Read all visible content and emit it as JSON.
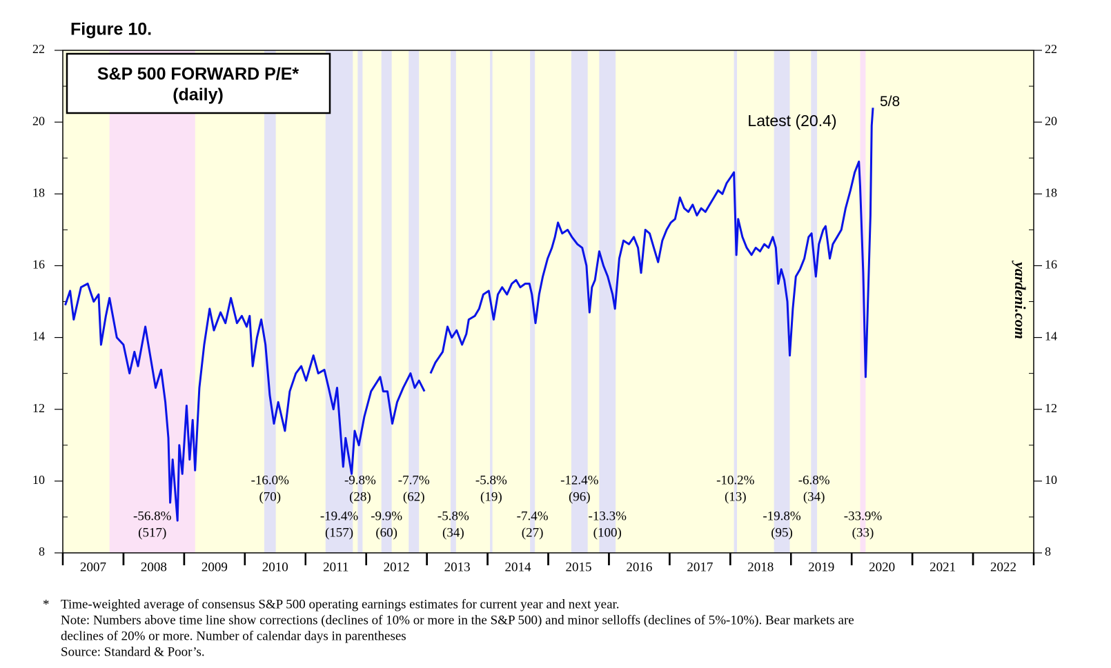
{
  "chart_data": {
    "type": "line",
    "figure_label": "Figure 10.",
    "title": "S&P 500 FORWARD P/E*",
    "subtitle": "(daily)",
    "source_mark": "yardeni.com",
    "latest_label": "Latest (20.4)",
    "latest_date": "5/8",
    "color": "#0a14e6",
    "background": "#ffffe0",
    "bear_color": "#fbe2f6",
    "correction_color": "#e2e2f6",
    "xlim": [
      2007,
      2023
    ],
    "xticks": [
      {
        "value": 2007.5,
        "label": "2007"
      },
      {
        "value": 2008.5,
        "label": "2008"
      },
      {
        "value": 2009.5,
        "label": "2009"
      },
      {
        "value": 2010.5,
        "label": "2010"
      },
      {
        "value": 2011.5,
        "label": "2011"
      },
      {
        "value": 2012.5,
        "label": "2012"
      },
      {
        "value": 2013.5,
        "label": "2013"
      },
      {
        "value": 2014.5,
        "label": "2014"
      },
      {
        "value": 2015.5,
        "label": "2015"
      },
      {
        "value": 2016.5,
        "label": "2016"
      },
      {
        "value": 2017.5,
        "label": "2017"
      },
      {
        "value": 2018.5,
        "label": "2018"
      },
      {
        "value": 2019.5,
        "label": "2019"
      },
      {
        "value": 2020.5,
        "label": "2020"
      },
      {
        "value": 2021.5,
        "label": "2021"
      },
      {
        "value": 2022.5,
        "label": "2022"
      }
    ],
    "ylim": [
      8,
      22
    ],
    "yticks": [
      8,
      10,
      12,
      14,
      16,
      18,
      20,
      22
    ],
    "x": [
      2007.04,
      2007.12,
      2007.18,
      2007.3,
      2007.41,
      2007.51,
      2007.59,
      2007.63,
      2007.71,
      2007.77,
      2007.89,
      2008.0,
      2008.1,
      2008.18,
      2008.24,
      2008.36,
      2008.45,
      2008.53,
      2008.62,
      2008.69,
      2008.74,
      2008.77,
      2008.81,
      2008.89,
      2008.92,
      2008.97,
      2009.04,
      2009.09,
      2009.14,
      2009.18,
      2009.25,
      2009.33,
      2009.42,
      2009.49,
      2009.6,
      2009.68,
      2009.77,
      2009.87,
      2009.95,
      2010.03,
      2010.08,
      2010.13,
      2010.2,
      2010.27,
      2010.34,
      2010.41,
      2010.48,
      2010.55,
      2010.66,
      2010.74,
      2010.84,
      2010.93,
      2011.01,
      2011.13,
      2011.21,
      2011.31,
      2011.38,
      2011.46,
      2011.52,
      2011.62,
      2011.66,
      2011.76,
      2011.81,
      2011.88,
      2011.97,
      2012.08,
      2012.23,
      2012.28,
      2012.35,
      2012.43,
      2012.51,
      2012.61,
      2012.73,
      2012.8,
      2012.87,
      2012.96,
      2013.01,
      2013.06,
      2013.14,
      2013.26,
      2013.34,
      2013.41,
      2013.49,
      2013.58,
      2013.65,
      2013.69,
      2013.79,
      2013.86,
      2013.93,
      2014.02,
      2014.1,
      2014.17,
      2014.24,
      2014.32,
      2014.4,
      2014.47,
      2014.54,
      2014.62,
      2014.69,
      2014.73,
      2014.79,
      2014.85,
      2014.91,
      2014.99,
      2015.06,
      2015.11,
      2015.16,
      2015.23,
      2015.32,
      2015.39,
      2015.48,
      2015.56,
      2015.63,
      2015.68,
      2015.72,
      2015.77,
      2015.84,
      2015.91,
      2015.98,
      2016.06,
      2016.1,
      2016.17,
      2016.24,
      2016.33,
      2016.41,
      2016.48,
      2016.53,
      2016.6,
      2016.67,
      2016.74,
      2016.81,
      2016.88,
      2016.95,
      2017.02,
      2017.09,
      2017.17,
      2017.24,
      2017.31,
      2017.38,
      2017.45,
      2017.52,
      2017.59,
      2017.66,
      2017.73,
      2017.8,
      2017.87,
      2017.94,
      2018.02,
      2018.06,
      2018.1,
      2018.13,
      2018.2,
      2018.27,
      2018.35,
      2018.42,
      2018.49,
      2018.56,
      2018.63,
      2018.7,
      2018.75,
      2018.79,
      2018.84,
      2018.89,
      2018.94,
      2018.98,
      2019.03,
      2019.08,
      2019.15,
      2019.22,
      2019.29,
      2019.34,
      2019.41,
      2019.46,
      2019.53,
      2019.57,
      2019.64,
      2019.69,
      2019.76,
      2019.83,
      2019.9,
      2019.98,
      2020.05,
      2020.12,
      2020.14,
      2020.19,
      2020.23,
      2020.26,
      2020.31,
      2020.33,
      2020.35
    ],
    "values": [
      14.9,
      15.3,
      14.5,
      15.4,
      15.5,
      15.0,
      15.2,
      13.8,
      14.6,
      15.1,
      14.0,
      13.8,
      13.0,
      13.6,
      13.2,
      14.3,
      13.4,
      12.6,
      13.1,
      12.2,
      11.2,
      9.4,
      10.6,
      8.9,
      11.0,
      10.2,
      12.1,
      10.6,
      11.7,
      10.3,
      12.6,
      13.8,
      14.8,
      14.2,
      14.7,
      14.4,
      15.1,
      14.4,
      14.6,
      14.3,
      14.6,
      13.2,
      14.0,
      14.5,
      13.8,
      12.4,
      11.6,
      12.2,
      11.4,
      12.5,
      13.0,
      13.2,
      12.8,
      13.5,
      13.0,
      13.1,
      12.6,
      12.0,
      12.6,
      10.4,
      11.2,
      10.2,
      11.4,
      11.0,
      11.8,
      12.5,
      12.9,
      12.5,
      12.5,
      11.6,
      12.2,
      12.6,
      13.0,
      12.6,
      12.8,
      12.5,
      null,
      13.0,
      13.3,
      13.6,
      14.3,
      14.0,
      14.2,
      13.8,
      14.1,
      14.5,
      14.6,
      14.8,
      15.2,
      15.3,
      14.5,
      15.2,
      15.4,
      15.2,
      15.5,
      15.6,
      15.4,
      15.5,
      15.5,
      15.2,
      14.4,
      15.2,
      15.7,
      16.2,
      16.5,
      16.8,
      17.2,
      16.9,
      17.0,
      16.8,
      16.6,
      16.5,
      16.0,
      14.7,
      15.4,
      15.6,
      16.4,
      16.0,
      15.7,
      15.2,
      14.8,
      16.2,
      16.7,
      16.6,
      16.8,
      16.5,
      15.8,
      17.0,
      16.9,
      16.5,
      16.1,
      16.7,
      17.0,
      17.2,
      17.3,
      17.9,
      17.6,
      17.5,
      17.7,
      17.4,
      17.6,
      17.5,
      17.7,
      17.9,
      18.1,
      18.0,
      18.3,
      18.5,
      18.6,
      16.3,
      17.3,
      16.8,
      16.5,
      16.3,
      16.5,
      16.4,
      16.6,
      16.5,
      16.8,
      16.5,
      15.5,
      15.9,
      15.6,
      15.0,
      13.5,
      14.8,
      15.7,
      15.9,
      16.2,
      16.8,
      16.9,
      15.7,
      16.6,
      17.0,
      17.1,
      16.2,
      16.6,
      16.8,
      17.0,
      17.6,
      18.1,
      18.6,
      18.9,
      18.2,
      15.8,
      12.9,
      14.6,
      17.4,
      19.9,
      20.4
    ],
    "selloffs": [
      {
        "start": 2007.77,
        "end": 2009.18,
        "kind": "bear",
        "change": "-56.8%",
        "days": "(517)"
      },
      {
        "start": 2010.32,
        "end": 2010.51,
        "kind": "correction",
        "change": "-16.0%",
        "days": "(70)"
      },
      {
        "start": 2011.33,
        "end": 2011.78,
        "kind": "correction",
        "change": "-19.4%",
        "days": "(157)"
      },
      {
        "start": 2011.86,
        "end": 2011.94,
        "kind": "correction",
        "change": "-9.8%",
        "days": "(28)"
      },
      {
        "start": 2012.25,
        "end": 2012.42,
        "kind": "correction",
        "change": "-9.9%",
        "days": "(60)"
      },
      {
        "start": 2012.7,
        "end": 2012.87,
        "kind": "correction",
        "change": "-7.7%",
        "days": "(62)"
      },
      {
        "start": 2013.39,
        "end": 2013.48,
        "kind": "correction",
        "change": "-5.8%",
        "days": "(34)"
      },
      {
        "start": 2014.04,
        "end": 2014.08,
        "kind": "correction",
        "change": "-5.8%",
        "days": "(19)"
      },
      {
        "start": 2014.7,
        "end": 2014.78,
        "kind": "correction",
        "change": "-7.4%",
        "days": "(27)"
      },
      {
        "start": 2015.38,
        "end": 2015.65,
        "kind": "correction",
        "change": "-12.4%",
        "days": "(96)"
      },
      {
        "start": 2015.84,
        "end": 2016.11,
        "kind": "correction",
        "change": "-13.3%",
        "days": "(100)"
      },
      {
        "start": 2018.06,
        "end": 2018.11,
        "kind": "correction",
        "change": "-10.2%",
        "days": "(13)"
      },
      {
        "start": 2018.72,
        "end": 2018.98,
        "kind": "correction",
        "change": "-19.8%",
        "days": "(95)"
      },
      {
        "start": 2019.33,
        "end": 2019.43,
        "kind": "correction",
        "change": "-6.8%",
        "days": "(34)"
      },
      {
        "start": 2020.14,
        "end": 2020.23,
        "kind": "bear",
        "change": "-33.9%",
        "days": "(33)"
      }
    ],
    "note_marker": "*",
    "notes": [
      "Time-weighted average of consensus S&P 500 operating earnings estimates for current year and next year.",
      "Note: Numbers above time line show corrections (declines of 10% or more in the S&P 500) and minor selloffs (declines of 5%-10%). Bear markets are",
      "declines of 20% or more. Number of calendar days in parentheses",
      "Source: Standard & Poor’s."
    ]
  }
}
